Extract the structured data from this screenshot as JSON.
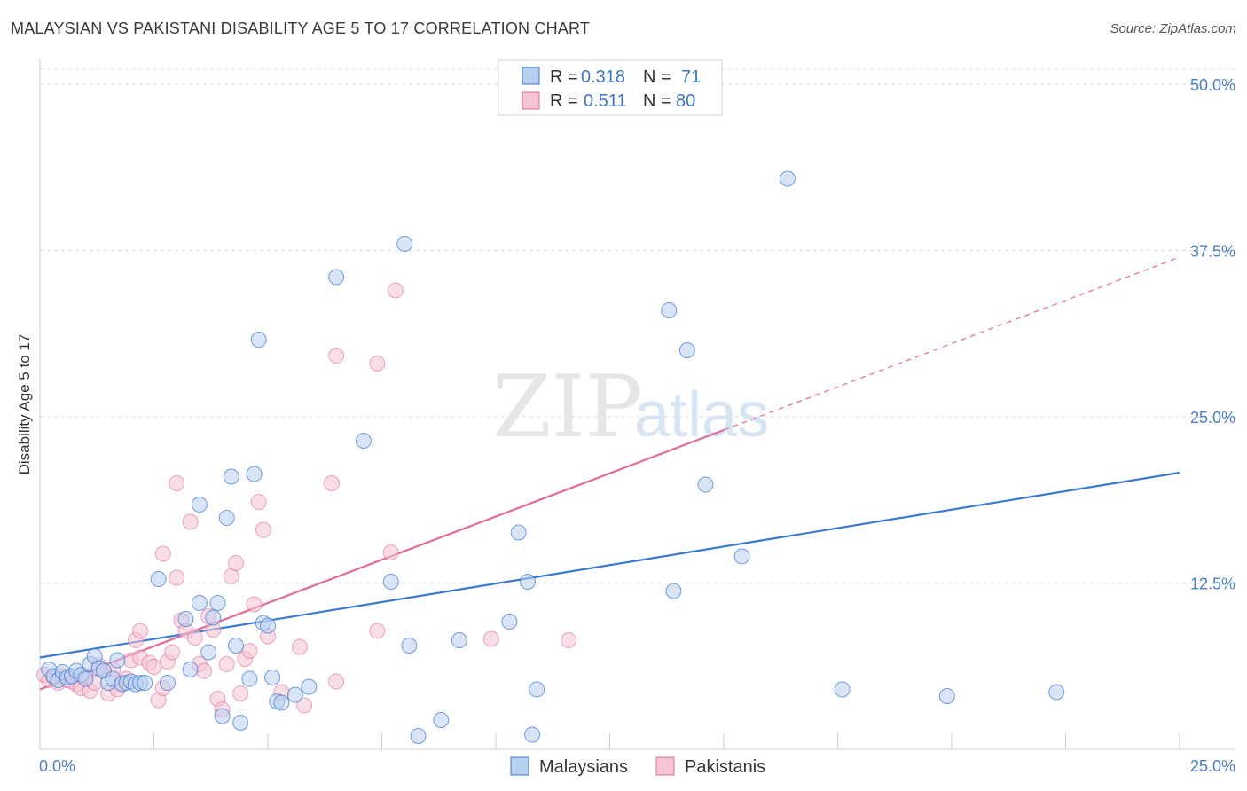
{
  "title": "MALAYSIAN VS PAKISTANI DISABILITY AGE 5 TO 17 CORRELATION CHART",
  "source": "Source: ZipAtlas.com",
  "watermark": {
    "zip": "ZIP",
    "atlas": "atlas"
  },
  "colors": {
    "blue": "#3b78d0",
    "pink": "#e06b97",
    "blue_fill": "#b9d0f0",
    "pink_fill": "#f6c3d4",
    "grid": "#d8d8d8",
    "tick": "#4a7fc8"
  },
  "chart_data": {
    "type": "scatter",
    "title": "MALAYSIAN VS PAKISTANI DISABILITY AGE 5 TO 17 CORRELATION CHART",
    "xlabel": "",
    "ylabel": "Disability Age 5 to 17",
    "xlim": [
      0,
      25
    ],
    "ylim": [
      0,
      50
    ],
    "x_tick_labels": [
      "0.0%",
      "25.0%"
    ],
    "y_ticks": [
      12.5,
      25.0,
      37.5,
      50.0
    ],
    "y_tick_labels": [
      "12.5%",
      "25.0%",
      "37.5%",
      "50.0%"
    ],
    "legend": [
      {
        "r_label": "R =",
        "r": "0.318",
        "n_label": "N =",
        "n": "71"
      },
      {
        "r_label": "R =",
        "r": "0.511",
        "n_label": "N =",
        "n": "80"
      }
    ],
    "bottom_legend": [
      "Malaysians",
      "Pakistanis"
    ],
    "series": [
      {
        "name": "Malaysians",
        "color": "#3b78d0",
        "trend": {
          "x0": 0,
          "y0": 6.9,
          "x1": 25,
          "y1": 20.8
        },
        "points": [
          [
            0.2,
            6.0
          ],
          [
            0.3,
            5.5
          ],
          [
            0.4,
            5.2
          ],
          [
            0.5,
            5.8
          ],
          [
            0.6,
            5.4
          ],
          [
            0.7,
            5.5
          ],
          [
            0.8,
            5.9
          ],
          [
            0.9,
            5.6
          ],
          [
            1.0,
            5.3
          ],
          [
            1.1,
            6.4
          ],
          [
            1.2,
            7.0
          ],
          [
            1.3,
            6.1
          ],
          [
            1.4,
            5.9
          ],
          [
            1.5,
            5.0
          ],
          [
            1.6,
            5.3
          ],
          [
            1.7,
            6.7
          ],
          [
            1.8,
            4.9
          ],
          [
            1.9,
            5.0
          ],
          [
            2.0,
            5.1
          ],
          [
            2.1,
            4.9
          ],
          [
            2.2,
            5.0
          ],
          [
            2.3,
            5.0
          ],
          [
            2.6,
            12.8
          ],
          [
            2.8,
            5.0
          ],
          [
            3.2,
            9.8
          ],
          [
            3.3,
            6.0
          ],
          [
            3.5,
            18.4
          ],
          [
            3.5,
            11.0
          ],
          [
            3.7,
            7.3
          ],
          [
            3.8,
            9.9
          ],
          [
            3.9,
            11.0
          ],
          [
            4.0,
            2.5
          ],
          [
            4.1,
            17.4
          ],
          [
            4.2,
            20.5
          ],
          [
            4.3,
            7.8
          ],
          [
            4.4,
            2.0
          ],
          [
            4.6,
            5.3
          ],
          [
            4.7,
            20.7
          ],
          [
            4.8,
            30.8
          ],
          [
            4.9,
            9.5
          ],
          [
            5.0,
            9.3
          ],
          [
            5.1,
            5.4
          ],
          [
            5.2,
            3.6
          ],
          [
            5.3,
            3.5
          ],
          [
            5.6,
            4.1
          ],
          [
            5.9,
            4.7
          ],
          [
            6.5,
            35.5
          ],
          [
            7.1,
            23.2
          ],
          [
            7.7,
            12.6
          ],
          [
            8.0,
            38.0
          ],
          [
            8.1,
            7.8
          ],
          [
            8.3,
            1.0
          ],
          [
            8.8,
            2.2
          ],
          [
            9.2,
            8.2
          ],
          [
            10.3,
            9.6
          ],
          [
            10.5,
            16.3
          ],
          [
            10.7,
            12.6
          ],
          [
            10.8,
            1.1
          ],
          [
            10.9,
            4.5
          ],
          [
            13.8,
            33.0
          ],
          [
            13.9,
            11.9
          ],
          [
            14.2,
            30.0
          ],
          [
            14.6,
            19.9
          ],
          [
            15.4,
            14.5
          ],
          [
            16.4,
            42.9
          ],
          [
            17.6,
            4.5
          ],
          [
            19.9,
            4.0
          ],
          [
            22.3,
            4.3
          ]
        ]
      },
      {
        "name": "Pakistanis",
        "color": "#e06b97",
        "trend": {
          "x0": 0,
          "y0": 4.5,
          "x1": 15.0,
          "y1": 24.0
        },
        "trend_ext": {
          "x1": 25,
          "y1": 37.0
        },
        "points": [
          [
            0.1,
            5.6
          ],
          [
            0.2,
            5.2
          ],
          [
            0.3,
            5.4
          ],
          [
            0.4,
            5.0
          ],
          [
            0.5,
            5.5
          ],
          [
            0.6,
            5.2
          ],
          [
            0.7,
            5.1
          ],
          [
            0.8,
            4.9
          ],
          [
            0.9,
            4.6
          ],
          [
            1.0,
            5.5
          ],
          [
            1.1,
            4.4
          ],
          [
            1.2,
            5.0
          ],
          [
            1.3,
            6.3
          ],
          [
            1.4,
            5.9
          ],
          [
            1.5,
            4.2
          ],
          [
            1.6,
            6.0
          ],
          [
            1.7,
            4.5
          ],
          [
            1.8,
            5.0
          ],
          [
            1.9,
            5.3
          ],
          [
            2.0,
            6.7
          ],
          [
            2.1,
            8.2
          ],
          [
            2.2,
            6.9
          ],
          [
            2.2,
            8.9
          ],
          [
            2.4,
            6.5
          ],
          [
            2.5,
            6.2
          ],
          [
            2.6,
            3.7
          ],
          [
            2.7,
            4.6
          ],
          [
            2.7,
            14.7
          ],
          [
            2.8,
            6.6
          ],
          [
            2.9,
            7.3
          ],
          [
            3.0,
            20.0
          ],
          [
            3.0,
            12.9
          ],
          [
            3.1,
            9.7
          ],
          [
            3.2,
            8.9
          ],
          [
            3.3,
            17.1
          ],
          [
            3.4,
            8.4
          ],
          [
            3.5,
            6.4
          ],
          [
            3.6,
            5.9
          ],
          [
            3.7,
            10.0
          ],
          [
            3.8,
            9.0
          ],
          [
            3.9,
            3.8
          ],
          [
            4.0,
            3.0
          ],
          [
            4.1,
            6.4
          ],
          [
            4.2,
            13.0
          ],
          [
            4.3,
            14.0
          ],
          [
            4.4,
            4.2
          ],
          [
            4.5,
            6.8
          ],
          [
            4.6,
            7.4
          ],
          [
            4.7,
            10.9
          ],
          [
            4.8,
            18.6
          ],
          [
            4.9,
            16.5
          ],
          [
            5.0,
            8.5
          ],
          [
            5.3,
            4.3
          ],
          [
            5.7,
            7.7
          ],
          [
            5.8,
            3.3
          ],
          [
            6.4,
            20.0
          ],
          [
            6.5,
            29.6
          ],
          [
            6.5,
            5.1
          ],
          [
            7.4,
            29.0
          ],
          [
            7.4,
            8.9
          ],
          [
            7.7,
            14.8
          ],
          [
            7.8,
            34.5
          ],
          [
            9.9,
            8.3
          ],
          [
            11.6,
            8.2
          ]
        ]
      }
    ]
  }
}
